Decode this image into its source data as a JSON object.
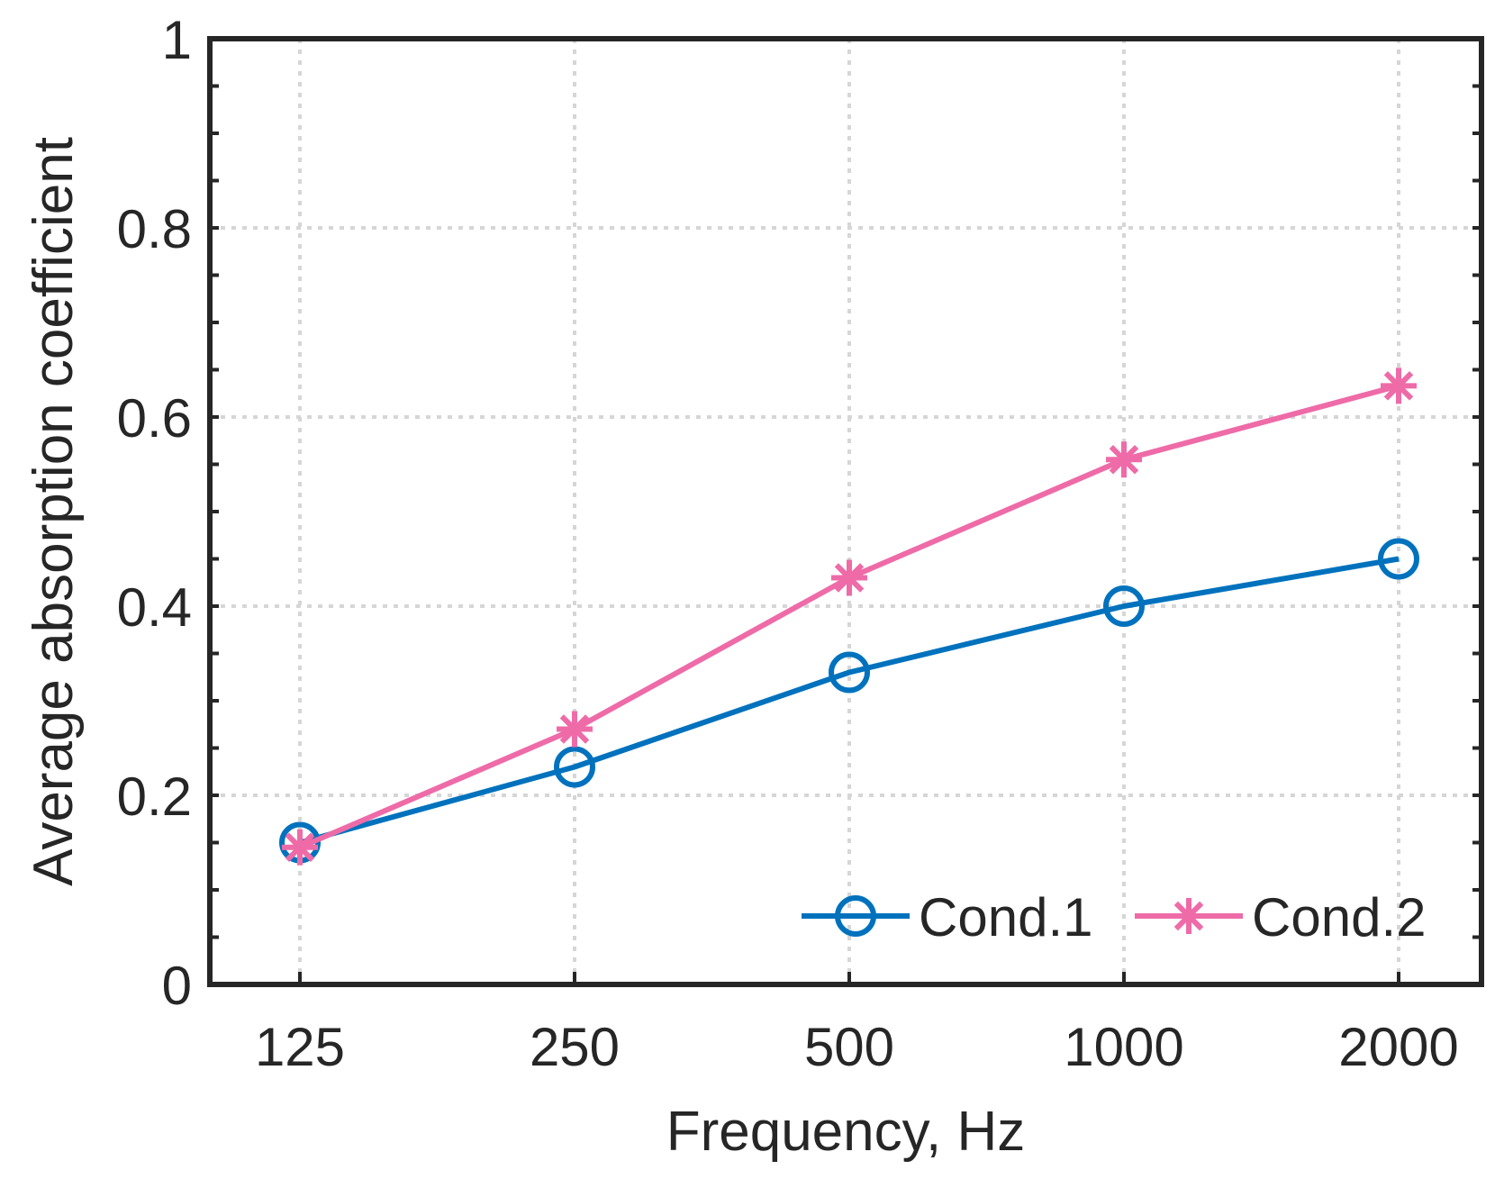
{
  "chart_data": {
    "type": "line",
    "title": "",
    "xlabel": "Frequency, Hz",
    "ylabel": "Average absorption coefficient",
    "categories": [
      "125",
      "250",
      "500",
      "1000",
      "2000"
    ],
    "ylim": [
      0,
      1
    ],
    "yticks": [
      0,
      0.2,
      0.4,
      0.6,
      0.8,
      1
    ],
    "ytick_labels": [
      "0",
      "0.2",
      "0.4",
      "0.6",
      "0.8",
      "1"
    ],
    "grid": true,
    "legend_position": "bottom-right",
    "series": [
      {
        "name": "Cond.1",
        "marker": "circle",
        "color": "#0072BD",
        "values": [
          0.15,
          0.23,
          0.33,
          0.4,
          0.45
        ]
      },
      {
        "name": "Cond.2",
        "marker": "asterisk",
        "color": "#EE6BA8",
        "values": [
          0.145,
          0.27,
          0.43,
          0.555,
          0.633
        ]
      }
    ]
  }
}
